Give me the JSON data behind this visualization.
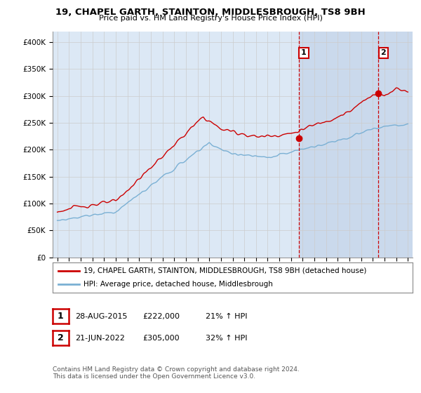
{
  "title": "19, CHAPEL GARTH, STAINTON, MIDDLESBROUGH, TS8 9BH",
  "subtitle": "Price paid vs. HM Land Registry's House Price Index (HPI)",
  "legend_entry1": "19, CHAPEL GARTH, STAINTON, MIDDLESBROUGH, TS8 9BH (detached house)",
  "legend_entry2": "HPI: Average price, detached house, Middlesbrough",
  "annotation1_date": "28-AUG-2015",
  "annotation1_price": "£222,000",
  "annotation1_hpi": "21% ↑ HPI",
  "annotation2_date": "21-JUN-2022",
  "annotation2_price": "£305,000",
  "annotation2_hpi": "32% ↑ HPI",
  "footer": "Contains HM Land Registry data © Crown copyright and database right 2024.\nThis data is licensed under the Open Government Licence v3.0.",
  "line1_color": "#cc0000",
  "line2_color": "#7ab0d4",
  "annotation_vline_color": "#cc0000",
  "grid_color": "#cccccc",
  "background_color": "#ffffff",
  "plot_bg_color": "#dce8f5",
  "shade_color": "#c8d8ec",
  "ylim": [
    0,
    420000
  ],
  "yticks": [
    0,
    50000,
    100000,
    150000,
    200000,
    250000,
    300000,
    350000,
    400000
  ],
  "ytick_labels": [
    "£0",
    "£50K",
    "£100K",
    "£150K",
    "£200K",
    "£250K",
    "£300K",
    "£350K",
    "£400K"
  ],
  "sale1_year": 2015.66,
  "sale1_price": 222000,
  "sale2_year": 2022.47,
  "sale2_price": 305000
}
